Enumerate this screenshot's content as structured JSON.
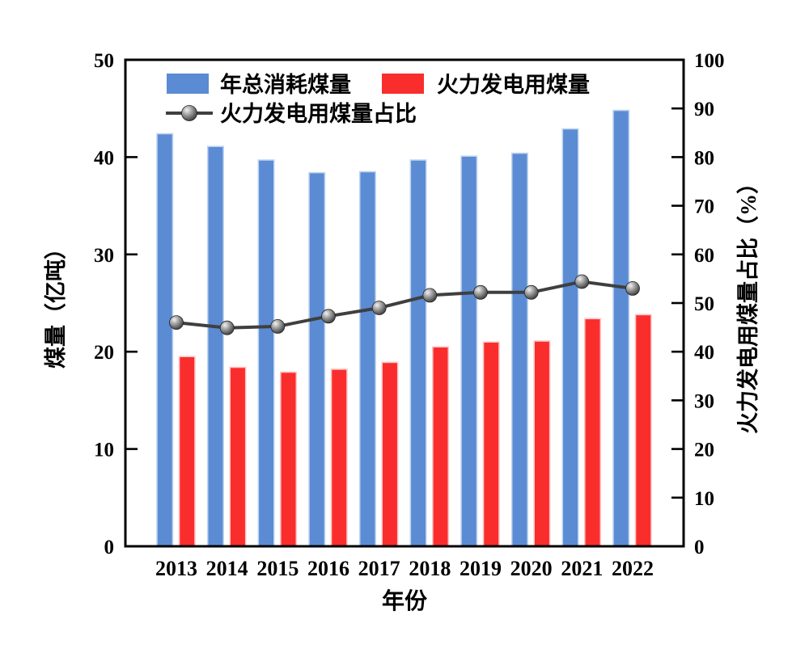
{
  "figure": {
    "background": "#ffffff"
  },
  "chart_data": {
    "type": "combo-bar-line",
    "title": "",
    "x_categories": [
      "2013",
      "2014",
      "2015",
      "2016",
      "2017",
      "2018",
      "2019",
      "2020",
      "2021",
      "2022"
    ],
    "xlabel": "年份",
    "grid": false,
    "legend_position": "upper-left-inside",
    "left_axis": {
      "label": "煤量（亿吨）",
      "min": 0,
      "max": 50,
      "tick_step": 10,
      "ticks": [
        0,
        10,
        20,
        30,
        40,
        50
      ]
    },
    "right_axis": {
      "label": "火力发电用煤量占比（%）",
      "min": 0,
      "max": 100,
      "tick_step": 10,
      "ticks": [
        0,
        10,
        20,
        30,
        40,
        50,
        60,
        70,
        80,
        90,
        100
      ]
    },
    "series": [
      {
        "name": "年总消耗煤量",
        "type": "bar",
        "axis": "left",
        "color": "#5B8BD3",
        "edge_color": "#BFD5EF",
        "values": [
          42.4,
          41.1,
          39.7,
          38.4,
          38.5,
          39.7,
          40.1,
          40.4,
          42.9,
          44.8
        ]
      },
      {
        "name": "火力发电用煤量",
        "type": "bar",
        "axis": "left",
        "color": "#FA2D2D",
        "edge_color": "#FFC6C6",
        "values": [
          19.5,
          18.4,
          17.9,
          18.2,
          18.9,
          20.5,
          21.0,
          21.1,
          23.4,
          23.8
        ]
      },
      {
        "name": "火力发电用煤量占比",
        "type": "line",
        "axis": "right",
        "color": "#3F3F3F",
        "marker": "sphere",
        "values": [
          46.0,
          44.9,
          45.2,
          47.3,
          49.0,
          51.6,
          52.2,
          52.2,
          54.4,
          53.0
        ]
      }
    ]
  }
}
